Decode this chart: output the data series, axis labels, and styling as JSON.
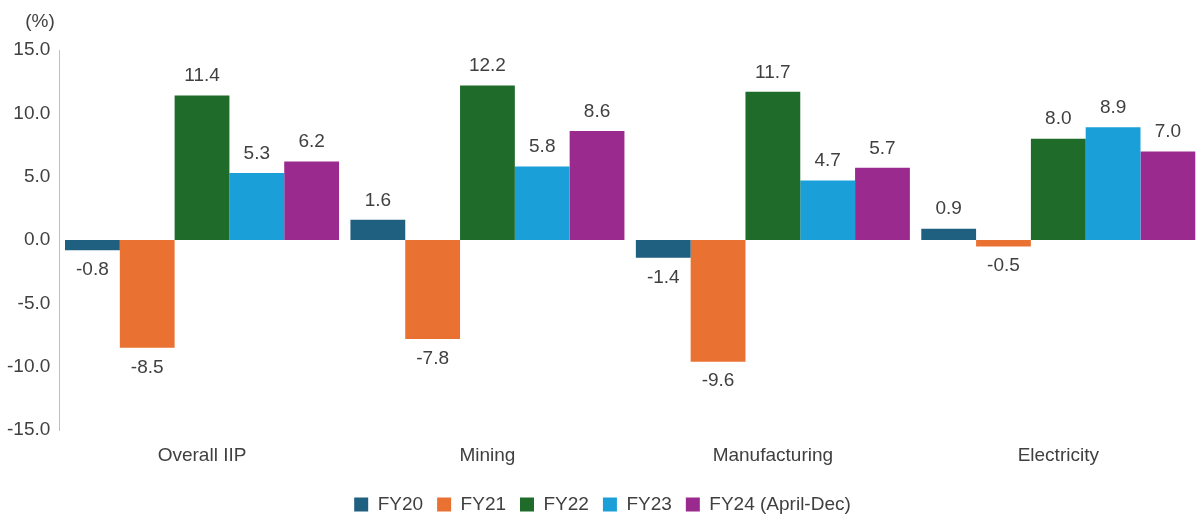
{
  "chart_data": {
    "type": "bar",
    "ylabel": "(%)",
    "categories": [
      "Overall IIP",
      "Mining",
      "Manufacturing",
      "Electricity"
    ],
    "series": [
      {
        "name": "FY20",
        "color": "#1f5f7f",
        "values": [
          -0.8,
          1.6,
          -1.4,
          0.9
        ],
        "value_labels": [
          "-0.8",
          "1.6",
          "-1.4",
          "0.9"
        ]
      },
      {
        "name": "FY21",
        "color": "#e97132",
        "values": [
          -8.5,
          -7.8,
          -9.6,
          -0.5
        ],
        "value_labels": [
          "-8.5",
          "-7.8",
          "-9.6",
          "-0.5"
        ]
      },
      {
        "name": "FY22",
        "color": "#1e6b2a",
        "values": [
          11.4,
          12.2,
          11.7,
          8.0
        ],
        "value_labels": [
          "11.4",
          "12.2",
          "11.7",
          "8.0"
        ]
      },
      {
        "name": "FY23",
        "color": "#1a9fd8",
        "values": [
          5.3,
          5.8,
          4.7,
          8.9
        ],
        "value_labels": [
          "5.3",
          "5.8",
          "4.7",
          "8.9"
        ]
      },
      {
        "name": "FY24 (April-Dec)",
        "color": "#9b2a8f",
        "values": [
          6.2,
          8.6,
          5.7,
          7.0
        ],
        "value_labels": [
          "6.2",
          "8.6",
          "5.7",
          "7.0"
        ]
      }
    ],
    "ylim": [
      -15,
      15
    ],
    "yticks": [
      {
        "value": 15,
        "label": "15.0"
      },
      {
        "value": 10,
        "label": "10.0"
      },
      {
        "value": 5,
        "label": "5.0"
      },
      {
        "value": 0,
        "label": "0.0"
      },
      {
        "value": -5,
        "label": "-5.0"
      },
      {
        "value": -10,
        "label": "-10.0"
      },
      {
        "value": -15,
        "label": "-15.0"
      }
    ],
    "legend": "bottom",
    "grid": false
  }
}
